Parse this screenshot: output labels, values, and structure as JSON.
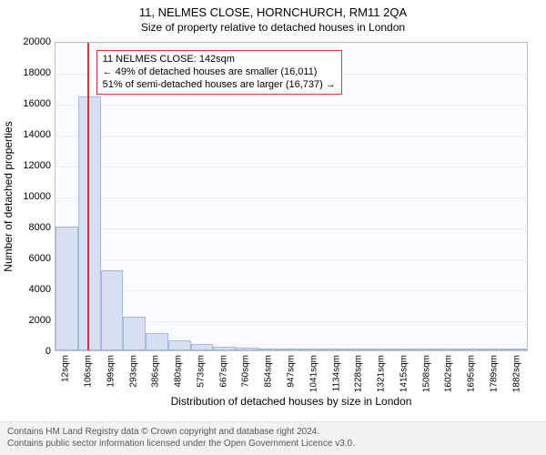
{
  "title_main": "11, NELMES CLOSE, HORNCHURCH, RM11 2QA",
  "title_sub": "Size of property relative to detached houses in London",
  "chart": {
    "type": "histogram",
    "background_color": "#fafbff",
    "bar_fill": "#d6e0f2",
    "bar_border": "#a8b8d8",
    "marker_color": "#d33",
    "grid_color": "#eeeef5",
    "x_categories": [
      "12sqm",
      "106sqm",
      "199sqm",
      "293sqm",
      "386sqm",
      "480sqm",
      "573sqm",
      "667sqm",
      "760sqm",
      "854sqm",
      "947sqm",
      "1041sqm",
      "1134sqm",
      "1228sqm",
      "1321sqm",
      "1415sqm",
      "1508sqm",
      "1602sqm",
      "1695sqm",
      "1789sqm",
      "1882sqm"
    ],
    "bar_values": [
      8000,
      16400,
      5200,
      2200,
      1100,
      650,
      400,
      260,
      190,
      130,
      95,
      75,
      55,
      45,
      35,
      30,
      25,
      20,
      18,
      15,
      12
    ],
    "y": {
      "min": 0,
      "max": 20000,
      "step": 2000
    },
    "ylabel": "Number of detached properties",
    "xlabel": "Distribution of detached houses by size in London",
    "marker_at_index": 1.4,
    "callout": {
      "line1": "11 NELMES CLOSE: 142sqm",
      "line2": "← 49% of detached houses are smaller (16,011)",
      "line3": "51% of semi-detached houses are larger (16,737) →"
    },
    "label_fontsize": 12,
    "tick_fontsize": 11,
    "xtick_fontsize": 10
  },
  "footer": {
    "line1": "Contains HM Land Registry data © Crown copyright and database right 2024.",
    "line2": "Contains public sector information licensed under the Open Government Licence v3.0."
  }
}
